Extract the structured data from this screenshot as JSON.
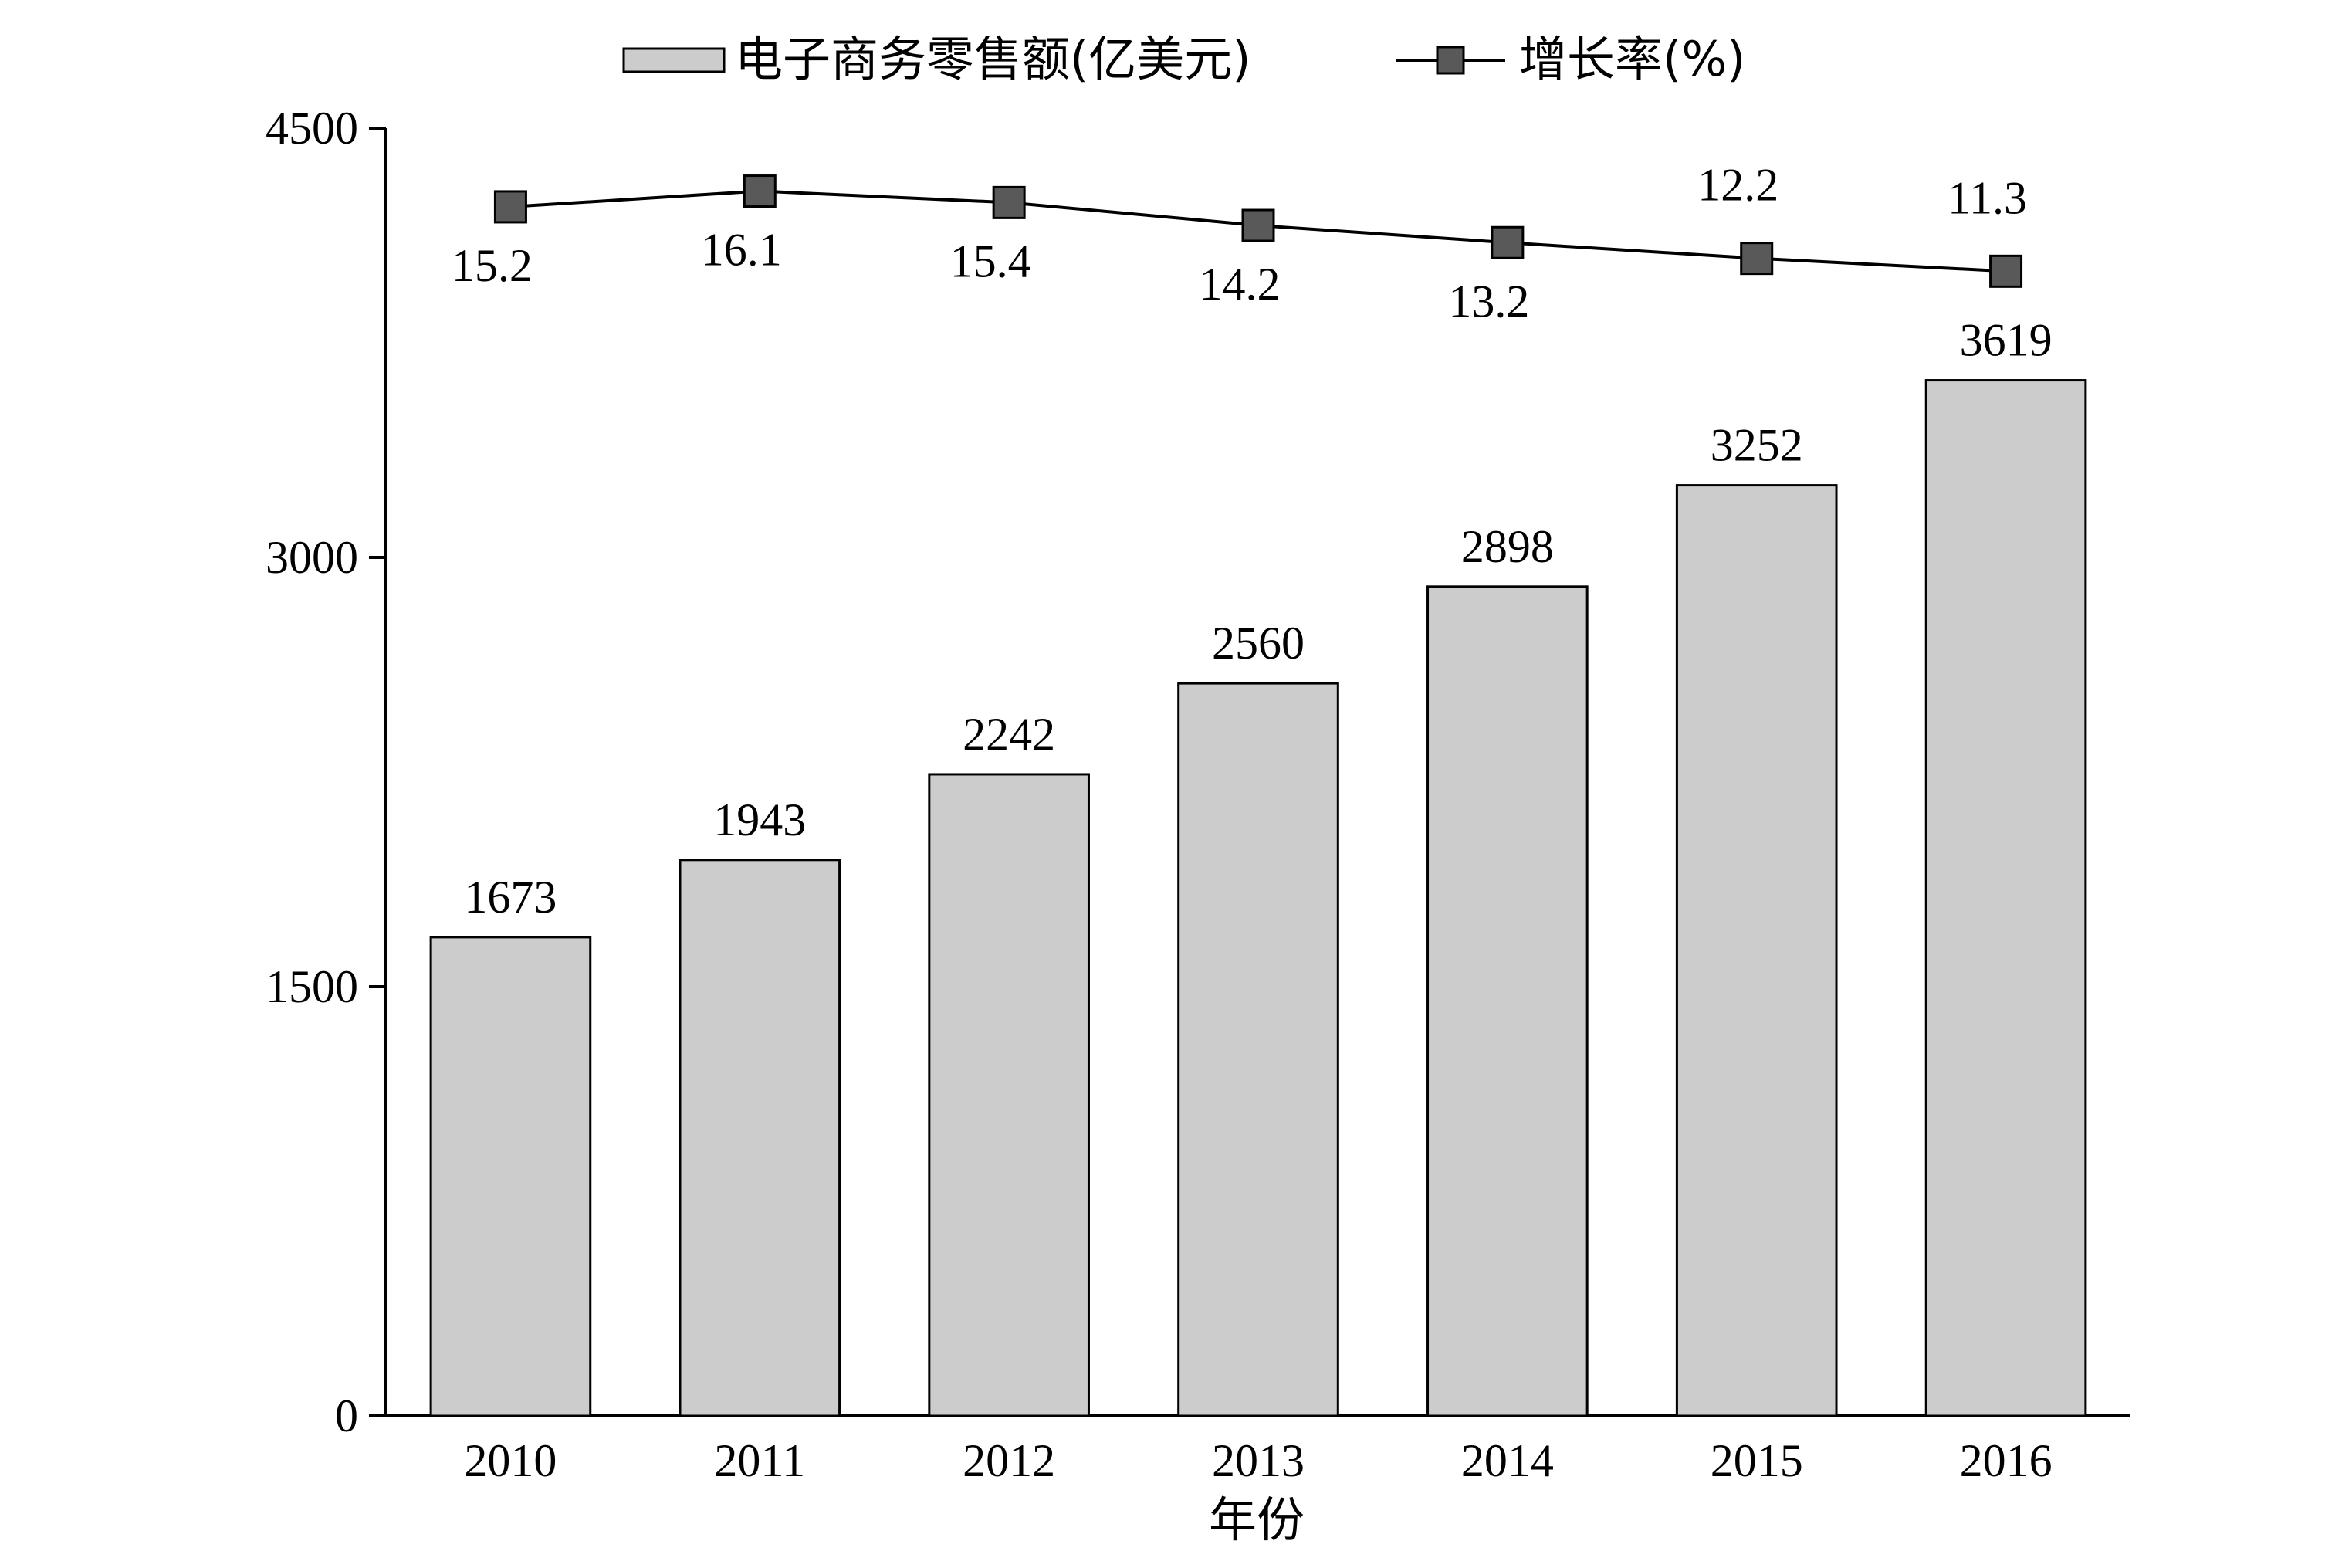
{
  "chart_data": {
    "type": "bar",
    "title": "",
    "xlabel": "年份",
    "ylabel": "",
    "categories": [
      "2010",
      "2011",
      "2012",
      "2013",
      "2014",
      "2015",
      "2016"
    ],
    "ylim": [
      0,
      4500
    ],
    "yticks": [
      0,
      1500,
      3000,
      4500
    ],
    "grid": false,
    "legend_position": "top",
    "series": [
      {
        "name": "电子商务零售额(亿美元)",
        "kind": "bar",
        "values": [
          1673,
          1943,
          2242,
          2560,
          2898,
          3252,
          3619
        ],
        "color": "#cccccc"
      },
      {
        "name": "增长率(%)",
        "kind": "line",
        "marker": "square",
        "values": [
          15.2,
          16.1,
          15.4,
          14.2,
          13.2,
          12.2,
          11.3
        ],
        "value_labels": [
          "15.2",
          "16.1",
          "15.4",
          "14.2",
          "13.2",
          "12.2",
          "11.3"
        ],
        "approx_plot_y": [
          4225,
          4280,
          4240,
          4160,
          4100,
          4045,
          4000
        ],
        "color": "#595959"
      }
    ]
  }
}
